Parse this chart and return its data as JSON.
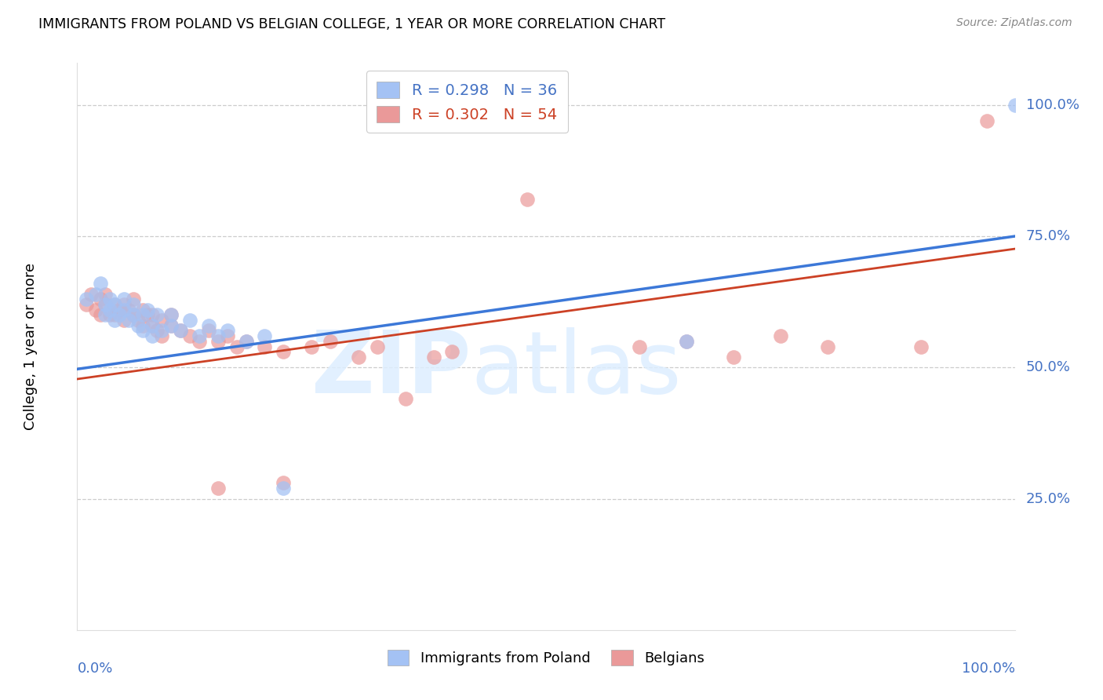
{
  "title": "IMMIGRANTS FROM POLAND VS BELGIAN COLLEGE, 1 YEAR OR MORE CORRELATION CHART",
  "source": "Source: ZipAtlas.com",
  "ylabel": "College, 1 year or more",
  "ytick_labels": [
    "100.0%",
    "75.0%",
    "50.0%",
    "25.0%"
  ],
  "ytick_positions": [
    1.0,
    0.75,
    0.5,
    0.25
  ],
  "xlim": [
    0.0,
    1.0
  ],
  "ylim": [
    0.0,
    1.08
  ],
  "blue_color": "#a4c2f4",
  "pink_color": "#ea9999",
  "blue_line_color": "#3c78d8",
  "pink_line_color": "#cc4125",
  "poland_x": [
    0.01,
    0.02,
    0.025,
    0.03,
    0.03,
    0.035,
    0.035,
    0.04,
    0.04,
    0.045,
    0.05,
    0.05,
    0.055,
    0.06,
    0.06,
    0.065,
    0.07,
    0.07,
    0.075,
    0.08,
    0.08,
    0.085,
    0.09,
    0.1,
    0.1,
    0.11,
    0.12,
    0.13,
    0.14,
    0.15,
    0.16,
    0.18,
    0.2,
    0.22,
    0.65,
    1.0
  ],
  "poland_y": [
    0.63,
    0.64,
    0.66,
    0.62,
    0.6,
    0.61,
    0.63,
    0.59,
    0.62,
    0.6,
    0.61,
    0.63,
    0.59,
    0.6,
    0.62,
    0.58,
    0.6,
    0.57,
    0.61,
    0.58,
    0.56,
    0.6,
    0.57,
    0.58,
    0.6,
    0.57,
    0.59,
    0.56,
    0.58,
    0.56,
    0.57,
    0.55,
    0.56,
    0.27,
    0.55,
    1.0
  ],
  "belgians_x": [
    0.01,
    0.015,
    0.02,
    0.025,
    0.025,
    0.03,
    0.03,
    0.035,
    0.04,
    0.04,
    0.045,
    0.05,
    0.05,
    0.055,
    0.06,
    0.06,
    0.065,
    0.07,
    0.07,
    0.075,
    0.08,
    0.08,
    0.085,
    0.09,
    0.09,
    0.1,
    0.1,
    0.11,
    0.12,
    0.13,
    0.14,
    0.15,
    0.16,
    0.17,
    0.18,
    0.2,
    0.22,
    0.25,
    0.27,
    0.3,
    0.32,
    0.35,
    0.38,
    0.4,
    0.48,
    0.15,
    0.22,
    0.6,
    0.65,
    0.7,
    0.75,
    0.8,
    0.9,
    0.97
  ],
  "belgians_y": [
    0.62,
    0.64,
    0.61,
    0.63,
    0.6,
    0.62,
    0.64,
    0.6,
    0.62,
    0.6,
    0.61,
    0.62,
    0.59,
    0.61,
    0.6,
    0.63,
    0.59,
    0.61,
    0.58,
    0.6,
    0.58,
    0.6,
    0.57,
    0.59,
    0.56,
    0.58,
    0.6,
    0.57,
    0.56,
    0.55,
    0.57,
    0.55,
    0.56,
    0.54,
    0.55,
    0.54,
    0.53,
    0.54,
    0.55,
    0.52,
    0.54,
    0.44,
    0.52,
    0.53,
    0.82,
    0.27,
    0.28,
    0.54,
    0.55,
    0.52,
    0.56,
    0.54,
    0.54,
    0.97
  ],
  "blue_intercept": 0.497,
  "blue_slope": 0.253,
  "pink_intercept": 0.478,
  "pink_slope": 0.248
}
